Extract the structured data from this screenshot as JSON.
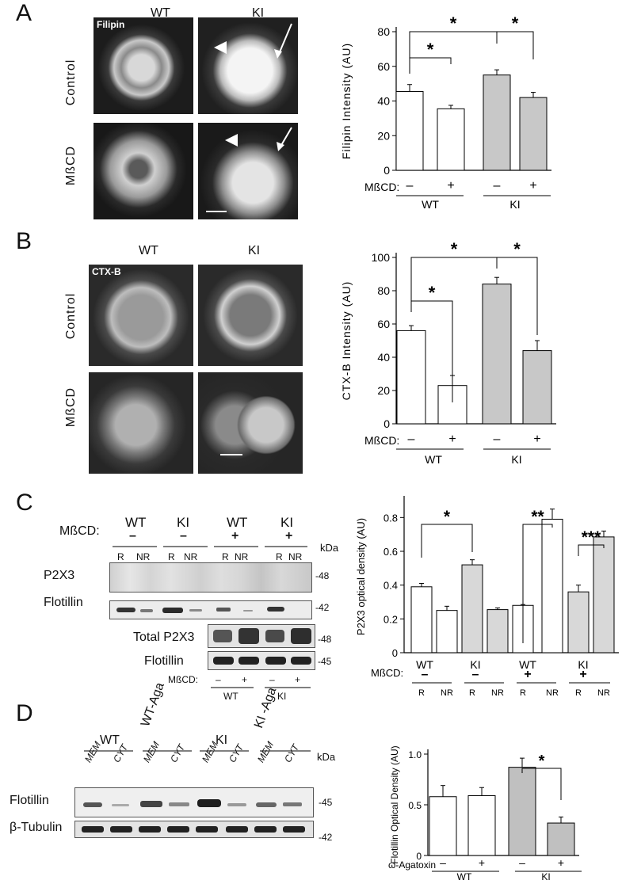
{
  "panels": {
    "A": {
      "letter": "A",
      "col_labels": [
        "WT",
        "KI"
      ],
      "row_labels": [
        "Control",
        "MßCD"
      ],
      "stain": "Filipin"
    },
    "B": {
      "letter": "B",
      "col_labels": [
        "WT",
        "KI"
      ],
      "row_labels": [
        "Control",
        "MßCD"
      ],
      "stain": "CTX-B"
    },
    "C": {
      "letter": "C",
      "treatment_label": "MßCD:",
      "groups": [
        "WT",
        "KI",
        "WT",
        "KI"
      ],
      "group_signs": [
        "–",
        "–",
        "+",
        "+"
      ],
      "fraction_labels": [
        "R",
        "NR",
        "R",
        "NR",
        "R",
        "NR",
        "R",
        "NR"
      ],
      "kda": "kDa",
      "rows": [
        {
          "name": "P2X3",
          "marker": "-48"
        },
        {
          "name": "Flotillin",
          "marker": "-42"
        }
      ],
      "total_rows": [
        {
          "name": "Total P2X3",
          "marker": "-48"
        },
        {
          "name": "Flotillin",
          "marker": "-45"
        }
      ],
      "total_treat_label": "MßCD:",
      "total_signs": [
        "–",
        "+",
        "–",
        "+"
      ],
      "total_groups": [
        "WT",
        "KI"
      ]
    },
    "D": {
      "letter": "D",
      "groups": [
        "WT",
        "WT-Aga",
        "KI",
        "KI -Aga"
      ],
      "fractions": [
        "MEM",
        "CYT",
        "MEM",
        "CYT",
        "MEM",
        "CYT",
        "MEM",
        "CYT"
      ],
      "kda": "kDa",
      "rows": [
        {
          "name": "Flotillin",
          "marker": "-45"
        },
        {
          "name": "β-Tubulin",
          "marker": "-42"
        }
      ]
    }
  },
  "chart_data": [
    {
      "type": "bar",
      "ylabel": "Filipin Intensity (AU)",
      "ylim": [
        0,
        80
      ],
      "yticks": [
        0,
        20,
        40,
        60,
        80
      ],
      "treat_label": "MßCD:",
      "categories": [
        "WT –",
        "WT +",
        "KI –",
        "KI +"
      ],
      "signs": [
        "–",
        "+",
        "–",
        "+"
      ],
      "groups": [
        "WT",
        "KI"
      ],
      "values": [
        45.5,
        35.5,
        55,
        42
      ],
      "errors": [
        4,
        2,
        3,
        3
      ],
      "colors": [
        "#ffffff",
        "#ffffff",
        "#c8c8c8",
        "#c8c8c8"
      ],
      "sig": [
        "*",
        "*",
        "*"
      ]
    },
    {
      "type": "bar",
      "ylabel": "CTX-B Intensity (AU)",
      "ylim": [
        0,
        100
      ],
      "yticks": [
        0,
        20,
        40,
        60,
        80,
        100
      ],
      "treat_label": "MßCD:",
      "categories": [
        "WT –",
        "WT +",
        "KI –",
        "KI +"
      ],
      "signs": [
        "–",
        "+",
        "–",
        "+"
      ],
      "groups": [
        "WT",
        "KI"
      ],
      "values": [
        56,
        23,
        84,
        44
      ],
      "errors": [
        3,
        6,
        4,
        6
      ],
      "colors": [
        "#ffffff",
        "#ffffff",
        "#c8c8c8",
        "#c8c8c8"
      ],
      "sig": [
        "*",
        "*",
        "*"
      ]
    },
    {
      "type": "bar",
      "ylabel": "P2X3 optical density (AU)",
      "ylim": [
        0,
        0.9
      ],
      "yticks": [
        0,
        0.2,
        0.4,
        0.6,
        0.8
      ],
      "ytick_labels": [
        "0",
        "0.2",
        "0.4",
        "0.6",
        "0.8"
      ],
      "treat_label": "MßCD:",
      "categories": [
        "WT– R",
        "WT– NR",
        "KI– R",
        "KI– NR",
        "WT+ R",
        "WT+ NR",
        "KI+ R",
        "KI+ NR"
      ],
      "fractions": [
        "R",
        "NR",
        "R",
        "NR",
        "R",
        "NR",
        "R",
        "NR"
      ],
      "groups": [
        "WT",
        "KI",
        "WT",
        "KI"
      ],
      "group_signs": [
        "–",
        "–",
        "+",
        "+"
      ],
      "values": [
        0.39,
        0.25,
        0.52,
        0.255,
        0.28,
        0.79,
        0.36,
        0.685
      ],
      "errors": [
        0.02,
        0.025,
        0.03,
        0.01,
        0.005,
        0.06,
        0.04,
        0.035
      ],
      "colors": [
        "#ffffff",
        "#ffffff",
        "#d8d8d8",
        "#d8d8d8",
        "#ffffff",
        "#ffffff",
        "#d8d8d8",
        "#d8d8d8"
      ],
      "sig": [
        "*",
        "**",
        "***"
      ]
    },
    {
      "type": "bar",
      "ylabel": "Flotillin Optical Density (AU)",
      "ylim": [
        0,
        1.0
      ],
      "yticks": [
        0,
        0.5,
        1.0
      ],
      "ytick_labels": [
        "0",
        "0.5",
        "1.0"
      ],
      "treat_label": "ω-Agatoxin",
      "categories": [
        "WT –",
        "WT +",
        "KI –",
        "KI +"
      ],
      "signs": [
        "–",
        "+",
        "–",
        "+"
      ],
      "groups": [
        "WT",
        "KI"
      ],
      "values": [
        0.58,
        0.59,
        0.87,
        0.32
      ],
      "errors": [
        0.11,
        0.08,
        0.09,
        0.06
      ],
      "colors": [
        "#ffffff",
        "#ffffff",
        "#c0c0c0",
        "#c0c0c0"
      ],
      "sig": [
        "*"
      ]
    }
  ]
}
